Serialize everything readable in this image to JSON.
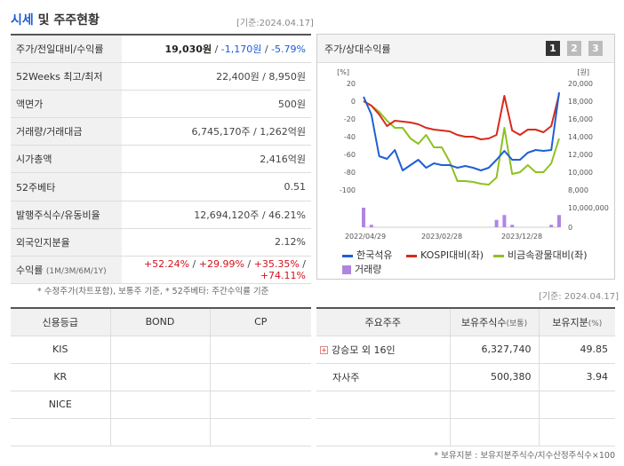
{
  "header": {
    "title_accent": "시세",
    "title_rest": " 및 주주현황",
    "as_of": "[기준:2024.04.17]"
  },
  "quote": {
    "rows": [
      {
        "label": "주가/전일대비/수익률"
      },
      {
        "label": "52Weeks 최고/최저",
        "value": "22,400원 / 8,950원"
      },
      {
        "label": "액면가",
        "value": "500원"
      },
      {
        "label": "거래량/거래대금",
        "value": "6,745,170주 / 1,262억원"
      },
      {
        "label": "시가총액",
        "value": "2,416억원"
      },
      {
        "label": "52주베타",
        "value": "0.51"
      },
      {
        "label": "발행주식수/유동비율",
        "value": "12,694,120주 / 46.21%"
      },
      {
        "label": "외국인지분율",
        "value": "2.12%"
      },
      {
        "label": "수익률",
        "label_sub": "(1M/3M/6M/1Y)"
      }
    ],
    "price": "19,030원",
    "change": "-1,170원",
    "change_pct": "-5.79%",
    "returns": [
      "+52.24%",
      "+29.99%",
      "+35.35%",
      "+74.11%"
    ],
    "sep": " / "
  },
  "note1": "* 수정주가(차트포함), 보통주 기준, * 52주베타: 주간수익률 기준",
  "chart_panel": {
    "title": "주가/상대수익률",
    "pages": [
      "1",
      "2",
      "3"
    ]
  },
  "chart_data": {
    "type": "line",
    "y_left_label": "[%]",
    "y_right_label": "[원]",
    "y_left_ticks": [
      "20",
      "0",
      "-20",
      "-40",
      "-60",
      "-80",
      "-100"
    ],
    "y_right_ticks": [
      "20,000",
      "18,000",
      "16,000",
      "14,000",
      "12,000",
      "10,000",
      "8,000"
    ],
    "volume_ticks": [
      "10,000,000",
      "0"
    ],
    "x_ticks": [
      "2022/04/29",
      "2023/02/28",
      "2023/12/28"
    ],
    "ylim_left": [
      -100,
      20
    ],
    "series": [
      {
        "name": "한국석유",
        "color": "#1f5fd6",
        "values": [
          5,
          -15,
          -62,
          -65,
          -55,
          -78,
          -72,
          -66,
          -75,
          -70,
          -72,
          -72,
          -75,
          -73,
          -75,
          -78,
          -75,
          -66,
          -56,
          -66,
          -66,
          -58,
          -55,
          -56,
          -55,
          10
        ]
      },
      {
        "name": "KOSPI대비(좌)",
        "color": "#d92a1c",
        "values": [
          0,
          -5,
          -15,
          -28,
          -22,
          -23,
          -24,
          -26,
          -30,
          -32,
          -33,
          -34,
          -38,
          -40,
          -40,
          -43,
          -42,
          -38,
          6,
          -33,
          -38,
          -32,
          -32,
          -35,
          -28,
          8
        ]
      },
      {
        "name": "비금속광물대비(좌)",
        "color": "#8dc21f",
        "values": [
          0,
          -5,
          -12,
          -22,
          -30,
          -30,
          -42,
          -48,
          -38,
          -52,
          -52,
          -68,
          -90,
          -90,
          -91,
          -93,
          -94,
          -86,
          -30,
          -82,
          -80,
          -72,
          -80,
          -80,
          -70,
          -42
        ]
      },
      {
        "name": "거래량",
        "color": "#b085e0",
        "values": [
          8,
          1,
          0,
          0,
          0,
          0,
          0,
          0,
          0,
          0,
          0,
          0,
          0,
          0,
          0,
          0,
          0,
          3,
          5,
          1,
          0,
          0,
          0,
          0,
          1,
          5
        ]
      }
    ]
  },
  "credit": {
    "headers": [
      "신용등급",
      "BOND",
      "CP"
    ],
    "rows": [
      "KIS",
      "KR",
      "NICE",
      ""
    ]
  },
  "holders": {
    "as_of": "[기준: 2024.04.17]",
    "headers": [
      "주요주주",
      "보유주식수",
      "(보통)",
      "보유지분",
      "(%)"
    ],
    "rows": [
      {
        "name": "강승모 외 16인",
        "shares": "6,327,740",
        "pct": "49.85"
      },
      {
        "name": "자사주",
        "shares": "500,380",
        "pct": "3.94"
      }
    ]
  },
  "note2": "* 보유지분 : 보유지분주식수/지수산정주식수×100"
}
